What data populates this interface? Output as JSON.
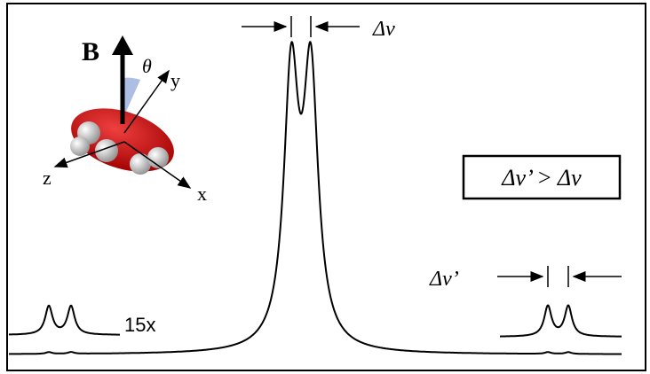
{
  "labels": {
    "delta_nu": "Δν",
    "comparison": "Δν’ > Δν",
    "delta_nu_prime": "Δν’",
    "scale": "15x",
    "field": "B",
    "angle": "θ",
    "axis_y": "y",
    "axis_z": "z",
    "axis_x": "x"
  }
}
